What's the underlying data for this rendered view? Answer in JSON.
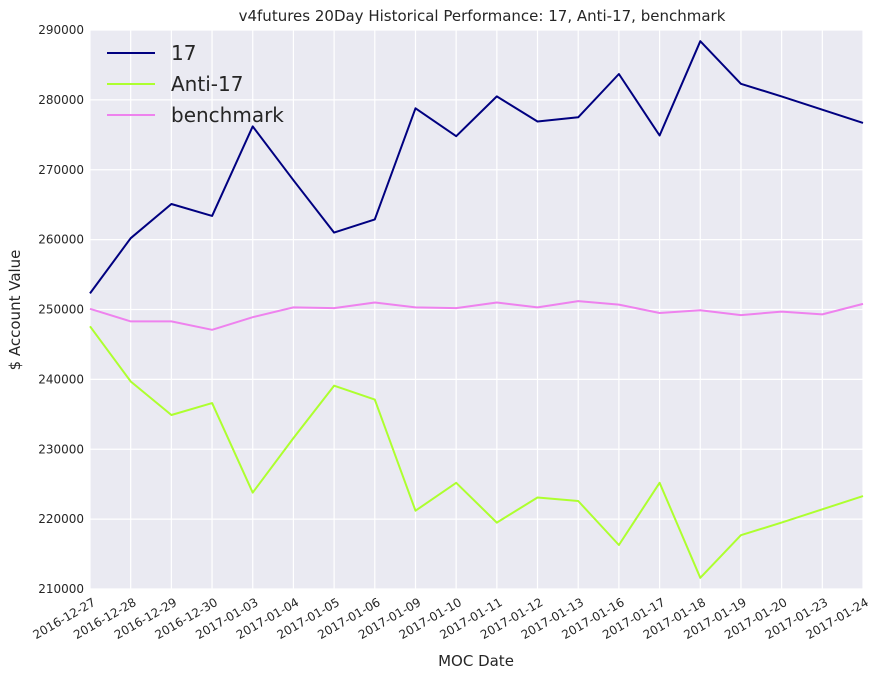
{
  "chart_data": {
    "type": "line",
    "title": "v4futures 20Day Historical Performance: 17, Anti-17, benchmark",
    "xlabel": "MOC Date",
    "ylabel": "$ Account Value",
    "x": [
      "2016-12-27",
      "2016-12-28",
      "2016-12-29",
      "2016-12-30",
      "2017-01-03",
      "2017-01-04",
      "2017-01-05",
      "2017-01-06",
      "2017-01-09",
      "2017-01-10",
      "2017-01-11",
      "2017-01-12",
      "2017-01-13",
      "2017-01-16",
      "2017-01-17",
      "2017-01-18",
      "2017-01-19",
      "2017-01-20",
      "2017-01-23",
      "2017-01-24"
    ],
    "ylim": [
      210000,
      290000
    ],
    "yticks": [
      "210000",
      "220000",
      "230000",
      "240000",
      "250000",
      "260000",
      "270000",
      "280000",
      "290000"
    ],
    "grid": true,
    "legend_position": "top-left",
    "background_color": "#eaeaf2",
    "series": [
      {
        "name": "17",
        "color": "#000080",
        "values": [
          252300,
          260200,
          265100,
          263400,
          276200,
          268500,
          261000,
          262900,
          278800,
          274800,
          280500,
          276900,
          277500,
          283700,
          274900,
          288400,
          282300,
          280500,
          278600,
          276700
        ]
      },
      {
        "name": "Anti-17",
        "color": "#adff2f",
        "values": [
          247600,
          239700,
          234900,
          236600,
          223800,
          231600,
          239100,
          237100,
          221200,
          225200,
          219500,
          223100,
          222600,
          216300,
          225200,
          211600,
          217700,
          219500,
          221400,
          223300
        ]
      },
      {
        "name": "benchmark",
        "color": "#ee82ee",
        "values": [
          250100,
          248300,
          248300,
          247100,
          248900,
          250300,
          250200,
          251000,
          250300,
          250200,
          251000,
          250300,
          251200,
          250700,
          249500,
          249900,
          249200,
          249700,
          249300,
          250800
        ]
      }
    ]
  }
}
